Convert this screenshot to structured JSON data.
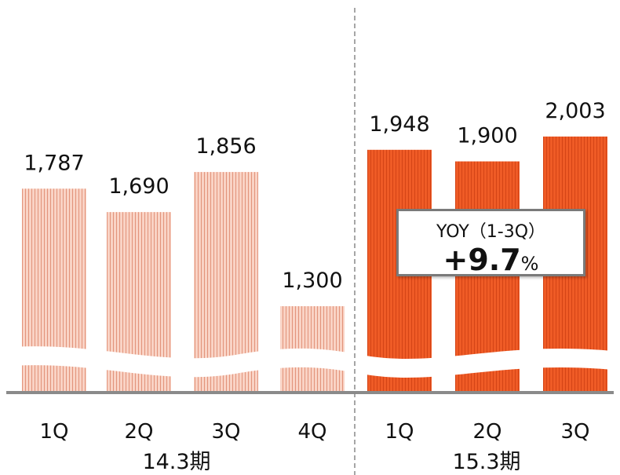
{
  "colors": {
    "period1_bar": "#f6c6b4",
    "period1_stripe": "#e89a80",
    "period2_bar": "#ee5a25",
    "period2_stripe": "#d9471a",
    "axis": "#8a8a8a",
    "divider": "#888888"
  },
  "chart_data": {
    "type": "bar",
    "title": "",
    "xlabel": "",
    "ylabel": "",
    "broken_axis": true,
    "grid": false,
    "categories": [
      "1Q",
      "2Q",
      "3Q",
      "4Q",
      "1Q",
      "2Q",
      "3Q"
    ],
    "groups": [
      {
        "label": "14.3期",
        "categories": [
          "1Q",
          "2Q",
          "3Q",
          "4Q"
        ]
      },
      {
        "label": "15.3期",
        "categories": [
          "1Q",
          "2Q",
          "3Q"
        ]
      }
    ],
    "series": [
      {
        "values": [
          1787,
          1690,
          1856,
          1300,
          1948,
          1900,
          2003
        ],
        "value_labels": [
          "1,787",
          "1,690",
          "1,856",
          "1,300",
          "1,948",
          "1,900",
          "2,003"
        ]
      }
    ]
  },
  "annotation": {
    "title": "YOY（1-3Q）",
    "value": "+9.7",
    "unit": "%"
  }
}
